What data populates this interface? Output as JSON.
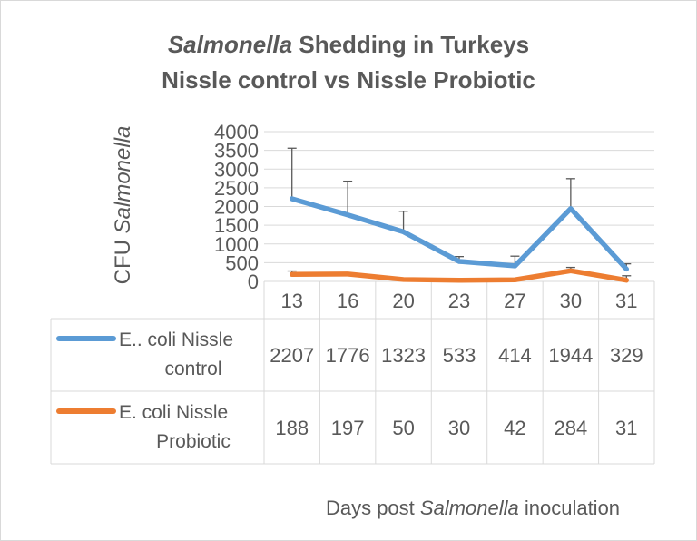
{
  "chart_data": {
    "type": "line",
    "title_italic": "Salmonella",
    "title_rest": " Shedding in Turkeys",
    "title_line2": "Nissle control vs Nissle Probiotic",
    "ylabel_plain": "CFU ",
    "ylabel_italic": "Salmonella",
    "xlabel_pre": "Days post ",
    "xlabel_italic": "Salmonella",
    "xlabel_post": " inoculation",
    "ylim": [
      0,
      4000
    ],
    "yticks": [
      "0",
      "500",
      "1000",
      "1500",
      "2000",
      "2500",
      "3000",
      "3500",
      "4000"
    ],
    "grid": true,
    "legend": "data-table",
    "categories": [
      "13",
      "16",
      "20",
      "23",
      "27",
      "30",
      "31"
    ],
    "series": [
      {
        "name_line1": "E.. coli Nissle",
        "name_line2": "control",
        "color": "#5b9bd5",
        "values": [
          2207,
          1776,
          1323,
          533,
          414,
          1944,
          329
        ],
        "error_plus": [
          1350,
          900,
          550,
          130,
          260,
          800,
          140
        ]
      },
      {
        "name_line1": "E. coli Nissle",
        "name_line2": "Probiotic",
        "color": "#ed7d31",
        "values": [
          188,
          197,
          50,
          30,
          42,
          284,
          31
        ],
        "error_plus": [
          90,
          20,
          0,
          0,
          0,
          90,
          120
        ]
      }
    ]
  }
}
